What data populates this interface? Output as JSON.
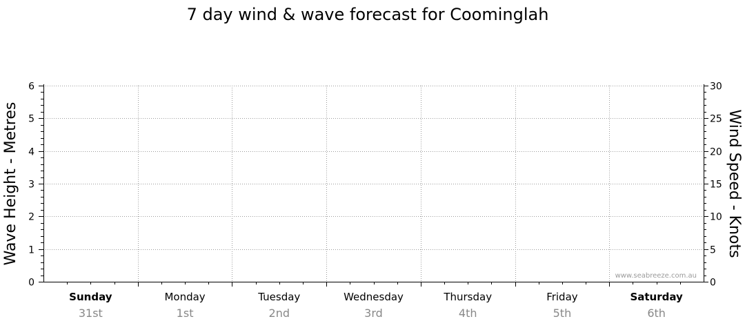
{
  "chart_data": {
    "type": "line",
    "title": "7 day wind & wave forecast for Coominglah",
    "ylabel_left": "Wave Height - Metres",
    "ylabel_right": "Wind Speed - Knots",
    "ylim_left": [
      0,
      6
    ],
    "ylim_right": [
      0,
      30
    ],
    "yticks_left": [
      0,
      1,
      2,
      3,
      4,
      5,
      6
    ],
    "yticks_right": [
      0,
      5,
      10,
      15,
      20,
      25,
      30
    ],
    "grid": true,
    "days": [
      {
        "name": "Sunday",
        "date": "31st",
        "bold": true
      },
      {
        "name": "Monday",
        "date": "1st",
        "bold": false
      },
      {
        "name": "Tuesday",
        "date": "2nd",
        "bold": false
      },
      {
        "name": "Wednesday",
        "date": "3rd",
        "bold": false
      },
      {
        "name": "Thursday",
        "date": "4th",
        "bold": false
      },
      {
        "name": "Friday",
        "date": "5th",
        "bold": false
      },
      {
        "name": "Saturday",
        "date": "6th",
        "bold": true
      }
    ],
    "series": [],
    "watermark": "www.seabreeze.com.au"
  }
}
